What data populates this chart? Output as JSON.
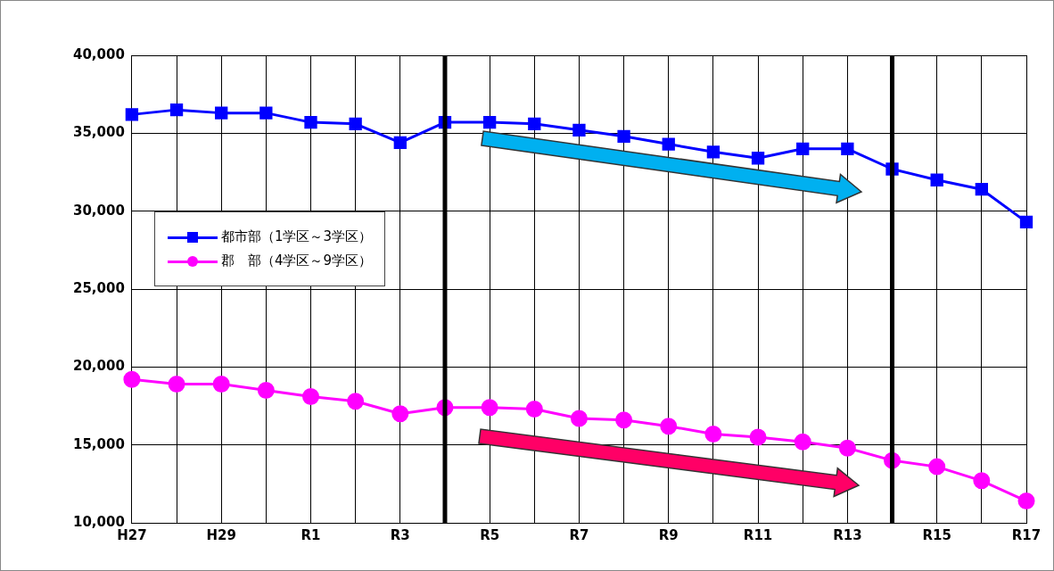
{
  "chart_data": {
    "type": "line",
    "categories": [
      "H27",
      null,
      "H29",
      null,
      "R1",
      null,
      "R3",
      null,
      "R5",
      null,
      "R7",
      null,
      "R9",
      null,
      "R11",
      null,
      "R13",
      null,
      "R15",
      null,
      "R17"
    ],
    "series": [
      {
        "name": "都市部（1学区～3学区）",
        "color": "#0000ff",
        "marker": "square",
        "values": [
          36200,
          36500,
          36300,
          36300,
          35700,
          35600,
          34400,
          35700,
          35700,
          35600,
          35200,
          34800,
          34300,
          33800,
          33400,
          34000,
          34000,
          32700,
          32000,
          31400,
          29300
        ]
      },
      {
        "name": "郡　部（4学区～9学区）",
        "color": "#ff00ff",
        "marker": "circle",
        "values": [
          19200,
          18900,
          18900,
          18500,
          18100,
          17800,
          17000,
          17400,
          17400,
          17300,
          16700,
          16600,
          16200,
          15700,
          15500,
          15200,
          14800,
          14000,
          13600,
          12700,
          11400
        ]
      }
    ],
    "ylim": [
      10000,
      40000
    ],
    "yticks": [
      {
        "value": 10000,
        "label": "10,000"
      },
      {
        "value": 15000,
        "label": "15,000"
      },
      {
        "value": 20000,
        "label": "20,000"
      },
      {
        "value": 25000,
        "label": "25,000"
      },
      {
        "value": 30000,
        "label": "30,000"
      },
      {
        "value": 35000,
        "label": "35,000"
      },
      {
        "value": 40000,
        "label": "40,000"
      }
    ],
    "grid": true,
    "legend": "top left",
    "line_style": "solid"
  }
}
